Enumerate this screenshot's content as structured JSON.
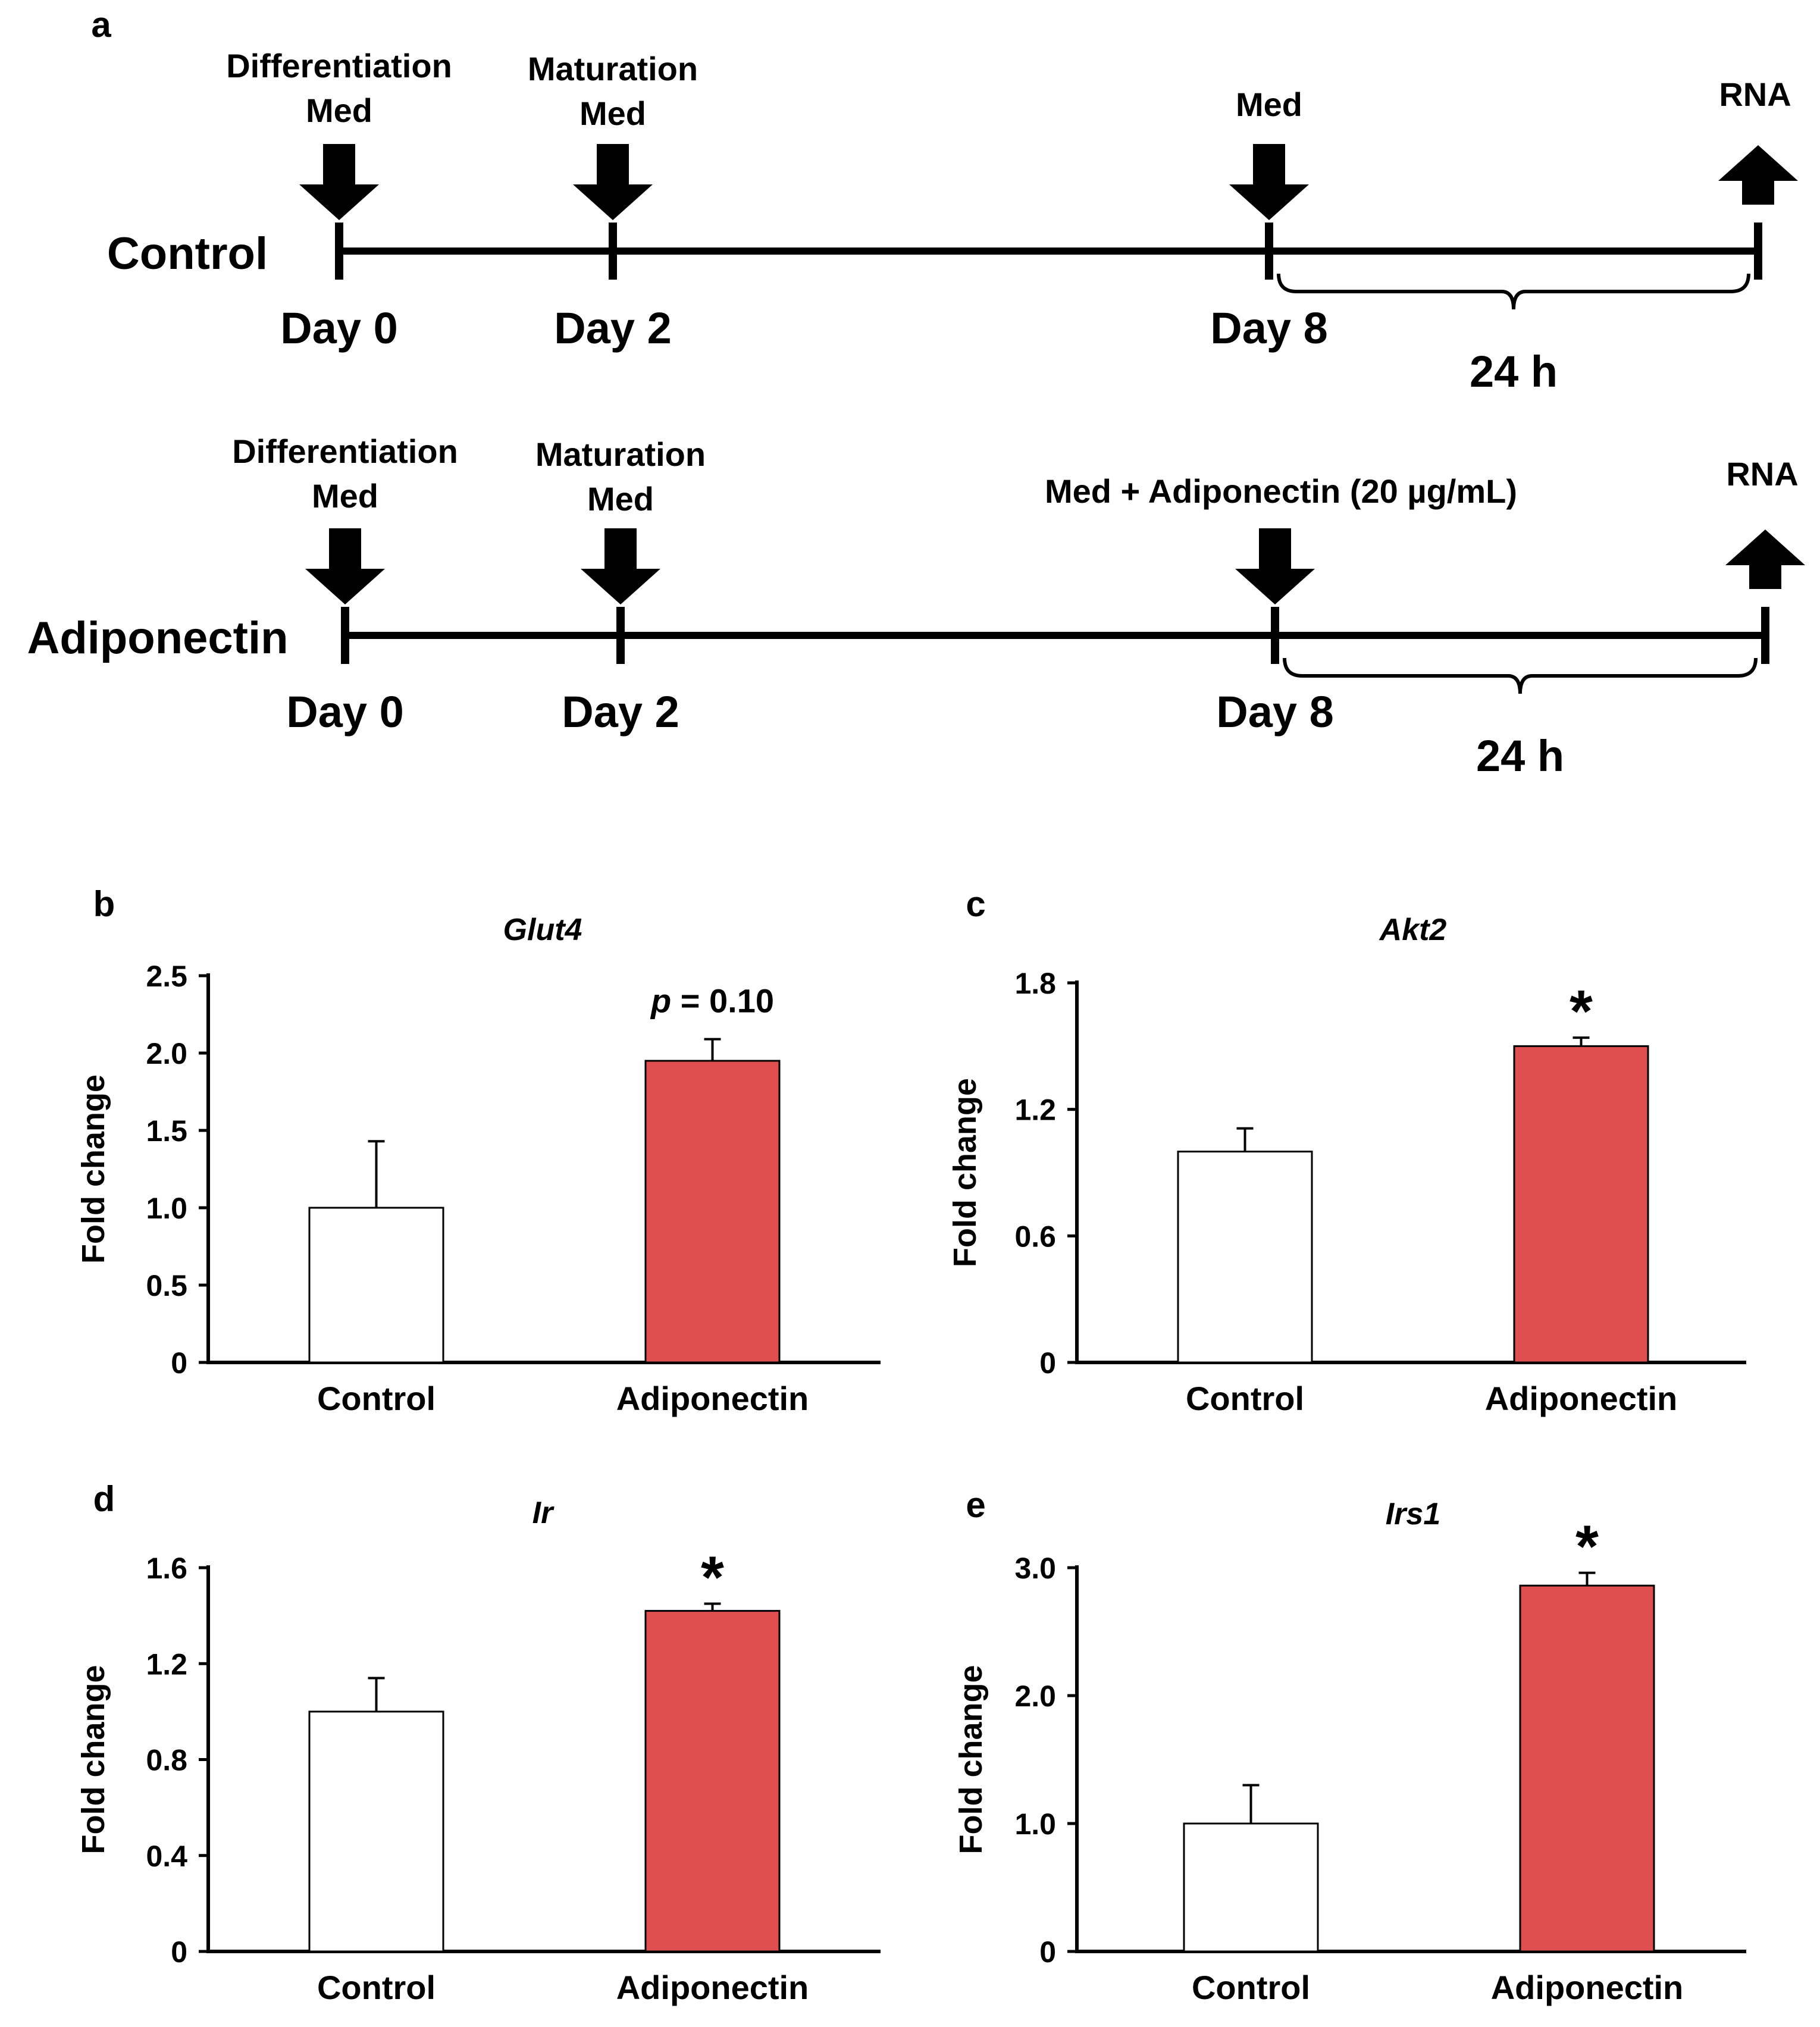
{
  "panel_a": {
    "label": "a",
    "timelines": [
      {
        "name": "Control",
        "arrows": {
          "differentiation": [
            "Differentiation",
            "Med"
          ],
          "maturation": [
            "Maturation",
            "Med"
          ],
          "treatment": [
            "Med"
          ],
          "harvest": [
            "RNA"
          ]
        },
        "days": [
          "Day 0",
          "Day 2",
          "Day 8"
        ],
        "duration": "24 h"
      },
      {
        "name": "Adiponectin",
        "arrows": {
          "differentiation": [
            "Differentiation",
            "Med"
          ],
          "maturation": [
            "Maturation",
            "Med"
          ],
          "treatment": [
            "Med + Adiponectin  (20 µg/mL)"
          ],
          "harvest": [
            "RNA"
          ]
        },
        "days": [
          "Day 0",
          "Day 2",
          "Day 8"
        ],
        "duration": "24 h"
      }
    ]
  },
  "chart_data": [
    {
      "panel": "b",
      "type": "bar",
      "title": "Glut4",
      "xlabel": "",
      "ylabel": "Fold change",
      "categories": [
        "Control",
        "Adiponectin"
      ],
      "values": [
        1.0,
        1.95
      ],
      "errors": [
        0.43,
        0.14
      ],
      "ylim": [
        0,
        2.5
      ],
      "yticks": [
        "0",
        "0.5",
        "1.0",
        "1.5",
        "2.0",
        "2.5"
      ],
      "annotations": [
        "",
        "p = 0.10"
      ],
      "colors": [
        "#ffffff",
        "#df4f4f"
      ]
    },
    {
      "panel": "c",
      "type": "bar",
      "title": "Akt2",
      "xlabel": "",
      "ylabel": "Fold change",
      "categories": [
        "Control",
        "Adiponectin"
      ],
      "values": [
        1.0,
        1.5
      ],
      "errors": [
        0.11,
        0.04
      ],
      "ylim": [
        0,
        1.8
      ],
      "yticks": [
        "0",
        "0.6",
        "1.2",
        "1.8"
      ],
      "annotations": [
        "",
        "*"
      ],
      "colors": [
        "#ffffff",
        "#df4f4f"
      ]
    },
    {
      "panel": "d",
      "type": "bar",
      "title": "Ir",
      "xlabel": "",
      "ylabel": "Fold change",
      "categories": [
        "Control",
        "Adiponectin"
      ],
      "values": [
        1.0,
        1.42
      ],
      "errors": [
        0.14,
        0.03
      ],
      "ylim": [
        0,
        1.6
      ],
      "yticks": [
        "0",
        "0.4",
        "0.8",
        "1.2",
        "1.6"
      ],
      "annotations": [
        "",
        "*"
      ],
      "colors": [
        "#ffffff",
        "#df4f4f"
      ]
    },
    {
      "panel": "e",
      "type": "bar",
      "title": "Irs1",
      "xlabel": "",
      "ylabel": "Fold change",
      "categories": [
        "Control",
        "Adiponectin"
      ],
      "values": [
        1.0,
        2.86
      ],
      "errors": [
        0.3,
        0.1
      ],
      "ylim": [
        0,
        3.0
      ],
      "yticks": [
        "0",
        "1.0",
        "2.0",
        "3.0"
      ],
      "annotations": [
        "",
        "*"
      ],
      "colors": [
        "#ffffff",
        "#df4f4f"
      ]
    }
  ]
}
